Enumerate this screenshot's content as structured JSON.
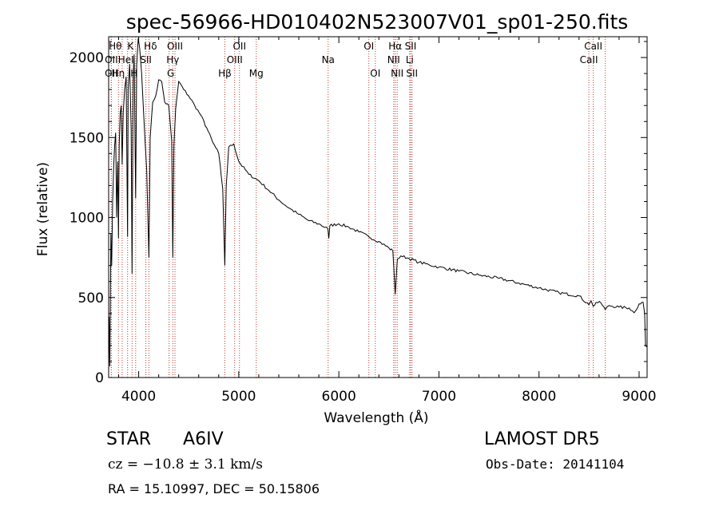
{
  "chart_data": {
    "type": "line",
    "title": "spec-56966-HD010402N523007V01_sp01-250.fits",
    "xlabel": "Wavelength (Å)",
    "ylabel": "Flux (relative)",
    "xlim": [
      3700,
      9080
    ],
    "ylim": [
      0,
      2130
    ],
    "xticks": [
      4000,
      5000,
      6000,
      7000,
      8000,
      9000
    ],
    "yticks": [
      0,
      500,
      1000,
      1500,
      2000
    ],
    "grid": false,
    "spectrum": {
      "x": [
        3700,
        3705,
        3712,
        3722,
        3730,
        3740,
        3750,
        3760,
        3770,
        3780,
        3790,
        3798,
        3805,
        3815,
        3825,
        3835,
        3845,
        3860,
        3875,
        3889,
        3895,
        3910,
        3925,
        3934,
        3945,
        3955,
        3970,
        3980,
        3995,
        4010,
        4030,
        4050,
        4080,
        4102,
        4115,
        4140,
        4170,
        4200,
        4230,
        4260,
        4300,
        4330,
        4341,
        4352,
        4370,
        4400,
        4450,
        4500,
        4560,
        4620,
        4680,
        4740,
        4800,
        4840,
        4861,
        4875,
        4900,
        4950,
        5000,
        5100,
        5200,
        5300,
        5400,
        5500,
        5600,
        5700,
        5800,
        5890,
        5900,
        5910,
        6000,
        6100,
        6200,
        6300,
        6400,
        6500,
        6540,
        6563,
        6585,
        6620,
        6700,
        6800,
        6900,
        7000,
        7200,
        7400,
        7600,
        7800,
        8000,
        8200,
        8400,
        8498,
        8520,
        8542,
        8570,
        8620,
        8662,
        8700,
        8800,
        8900,
        8950,
        9000,
        9040,
        9055,
        9065,
        9075
      ],
      "y": [
        30,
        380,
        70,
        900,
        700,
        1100,
        1320,
        1450,
        1530,
        1000,
        1350,
        870,
        1450,
        1650,
        1700,
        1330,
        1650,
        1800,
        1880,
        880,
        1800,
        1960,
        1550,
        650,
        1850,
        2020,
        1120,
        1950,
        2120,
        2060,
        1900,
        1650,
        1300,
        750,
        1500,
        1720,
        1760,
        1860,
        1850,
        1720,
        1700,
        1480,
        750,
        1450,
        1680,
        1850,
        1800,
        1760,
        1700,
        1640,
        1560,
        1470,
        1400,
        1180,
        700,
        1200,
        1440,
        1460,
        1350,
        1270,
        1230,
        1170,
        1110,
        1060,
        1020,
        980,
        960,
        930,
        870,
        950,
        960,
        940,
        910,
        880,
        850,
        810,
        790,
        520,
        740,
        760,
        745,
        720,
        705,
        690,
        665,
        640,
        620,
        590,
        560,
        530,
        510,
        455,
        480,
        445,
        470,
        465,
        425,
        450,
        440,
        435,
        405,
        460,
        470,
        400,
        200,
        190
      ]
    },
    "lines": [
      {
        "label": "Hθ",
        "x": 3798
      },
      {
        "label": "K",
        "x": 3934
      },
      {
        "label": "Hδ",
        "x": 4102
      },
      {
        "label": "OIII",
        "x": 4363
      },
      {
        "label": "OII",
        "x": 5007
      },
      {
        "label": "OI",
        "x": 6300
      },
      {
        "label": "Hα",
        "x": 6563
      },
      {
        "label": "SII",
        "x": 6717
      },
      {
        "label": "CaII",
        "x": 8542
      },
      {
        "label": "OII",
        "x": 3727
      },
      {
        "label": "HeI",
        "x": 3889
      },
      {
        "label": "SII",
        "x": 4072
      },
      {
        "label": "Hγ",
        "x": 4341
      },
      {
        "label": "OIII",
        "x": 4959
      },
      {
        "label": "Na",
        "x": 5893
      },
      {
        "label": "NII",
        "x": 6548
      },
      {
        "label": "Li",
        "x": 6708
      },
      {
        "label": "CaII",
        "x": 8498
      },
      {
        "label": "OII",
        "x": 3727
      },
      {
        "label": "Hη",
        "x": 3835
      },
      {
        "label": "H",
        "x": 3970
      },
      {
        "label": "G",
        "x": 4304
      },
      {
        "label": "Hβ",
        "x": 4861
      },
      {
        "label": "Mg",
        "x": 5175
      },
      {
        "label": "OI",
        "x": 6364
      },
      {
        "label": "NII",
        "x": 6583
      },
      {
        "label": "SII",
        "x": 6731
      },
      {
        "label": "CaII",
        "x": 8662
      }
    ]
  },
  "info": {
    "object_type": "STAR",
    "subclass": "A6IV",
    "survey": "LAMOST  DR5",
    "cz": "cz = −10.8 ± 3.1 km/s",
    "obs_date": "Obs-Date: 20141104",
    "radec": "RA =  15.10997, DEC =  50.15806"
  }
}
